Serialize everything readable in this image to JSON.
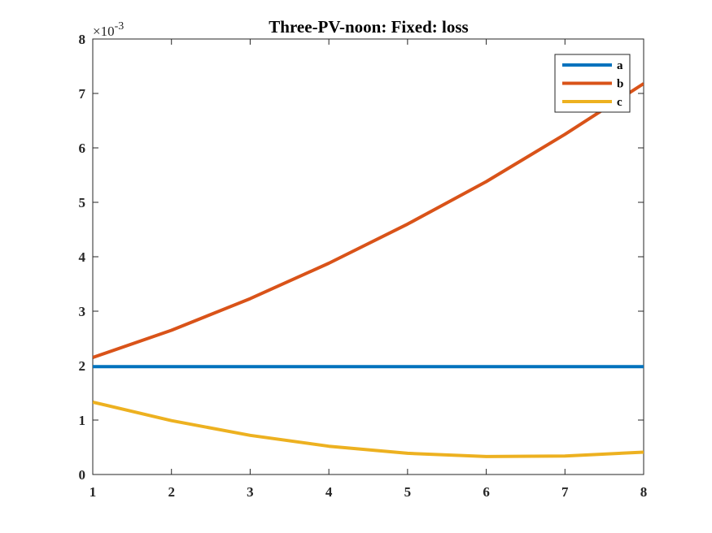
{
  "chart_data": {
    "type": "line",
    "title": "Three-PV-noon: Fixed: loss",
    "xlabel": "",
    "ylabel": "",
    "exponent_label": {
      "base": "×10",
      "power": "-3"
    },
    "xlim": [
      1,
      8
    ],
    "ylim": [
      0,
      8
    ],
    "xticks": [
      1,
      2,
      3,
      4,
      5,
      6,
      7,
      8
    ],
    "yticks": [
      0,
      1,
      2,
      3,
      4,
      5,
      6,
      7,
      8
    ],
    "grid": false,
    "legend_position": "top-right",
    "x": [
      1,
      2,
      3,
      4,
      5,
      6,
      7,
      8
    ],
    "series": [
      {
        "name": "a",
        "color": "#0072BD",
        "values": [
          1.98,
          1.98,
          1.98,
          1.98,
          1.98,
          1.98,
          1.98,
          1.98
        ]
      },
      {
        "name": "b",
        "color": "#D95319",
        "values": [
          2.15,
          2.65,
          3.23,
          3.88,
          4.6,
          5.38,
          6.25,
          7.18
        ]
      },
      {
        "name": "c",
        "color": "#EDB120",
        "values": [
          1.33,
          0.99,
          0.72,
          0.52,
          0.39,
          0.33,
          0.34,
          0.41
        ]
      }
    ]
  }
}
